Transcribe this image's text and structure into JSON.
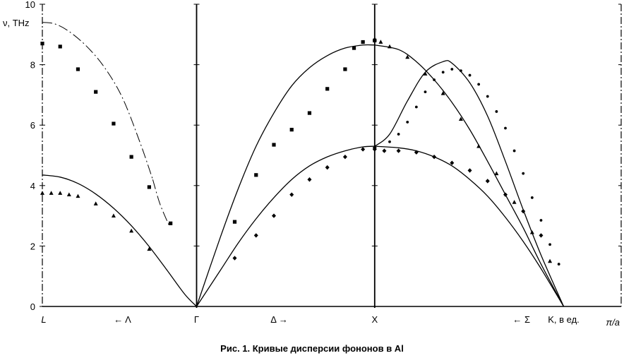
{
  "caption": "Рис. 1. Кривые дисперсии фононов в Al",
  "chart_data": {
    "type": "line",
    "title": "",
    "ylabel": "ν, THz",
    "xlabel": "K, в ед. π/a",
    "ylim": [
      0,
      10
    ],
    "yticks": [
      0,
      2,
      4,
      6,
      8,
      10
    ],
    "grid": false,
    "x_points": [
      {
        "label": "L",
        "x": 0
      },
      {
        "label": "Γ",
        "x": 0.866
      },
      {
        "label": "X",
        "x": 1.866
      },
      {
        "label": "K, в ед.",
        "x": 2.927
      }
    ],
    "direction_labels": [
      {
        "label": "← Λ",
        "x": 0.45
      },
      {
        "label": "Δ →",
        "x": 1.33
      },
      {
        "label": "← Σ",
        "x": 2.69
      }
    ],
    "xlim": [
      0,
      3.25
    ],
    "series": [
      {
        "style": "solid",
        "x": [
          0,
          0.1,
          0.2,
          0.3,
          0.4,
          0.5,
          0.6,
          0.7,
          0.8,
          0.866
        ],
        "values": [
          4.35,
          4.28,
          4.07,
          3.72,
          3.25,
          2.67,
          1.98,
          1.2,
          0.4,
          0
        ]
      },
      {
        "style": "dash-dot",
        "x": [
          0,
          0.07,
          0.15,
          0.25,
          0.35,
          0.45,
          0.55,
          0.62
        ],
        "values": [
          9.4,
          9.35,
          9.1,
          8.6,
          7.9,
          6.9,
          5.4,
          4.2
        ]
      },
      {
        "style": "dash-dot",
        "x": [
          0.62,
          0.66,
          0.71
        ],
        "values": [
          4.2,
          3.4,
          2.7
        ]
      },
      {
        "style": "solid",
        "x": [
          0.866,
          1.0,
          1.1,
          1.2,
          1.3,
          1.4,
          1.5,
          1.6,
          1.7,
          1.8,
          1.866
        ],
        "values": [
          0,
          2.3,
          3.9,
          5.3,
          6.4,
          7.3,
          7.9,
          8.3,
          8.55,
          8.65,
          8.65
        ]
      },
      {
        "style": "solid",
        "x": [
          0.866,
          1.0,
          1.1,
          1.2,
          1.3,
          1.4,
          1.5,
          1.6,
          1.7,
          1.8,
          1.866
        ],
        "values": [
          0,
          1.2,
          2.1,
          2.9,
          3.6,
          4.2,
          4.65,
          4.95,
          5.15,
          5.28,
          5.3
        ]
      },
      {
        "style": "solid",
        "x": [
          1.866,
          2.0,
          2.1,
          2.2,
          2.3,
          2.4,
          2.5,
          2.6,
          2.7,
          2.8,
          2.927
        ],
        "values": [
          5.3,
          5.25,
          5.15,
          4.95,
          4.65,
          4.2,
          3.65,
          2.95,
          2.15,
          1.25,
          0
        ]
      },
      {
        "style": "solid",
        "x": [
          1.866,
          2.0,
          2.1,
          2.2,
          2.3,
          2.4,
          2.5,
          2.6,
          2.7,
          2.8,
          2.927
        ],
        "values": [
          8.65,
          8.5,
          8.1,
          7.5,
          6.75,
          5.85,
          4.8,
          3.7,
          2.6,
          1.4,
          0
        ]
      },
      {
        "style": "solid",
        "x": [
          1.866,
          1.95,
          2.05,
          2.15,
          2.25,
          2.3,
          2.4,
          2.5,
          2.6,
          2.7,
          2.8,
          2.927
        ],
        "values": [
          5.3,
          5.7,
          6.8,
          7.75,
          8.1,
          8.05,
          7.4,
          6.3,
          4.8,
          3.2,
          1.7,
          0
        ]
      },
      {
        "style": "markers",
        "marker": "square",
        "x": [
          0,
          0.1,
          0.2,
          0.3,
          0.4,
          0.5,
          0.6,
          0.72
        ],
        "values": [
          8.7,
          8.6,
          7.85,
          7.1,
          6.05,
          4.95,
          3.95,
          2.75
        ]
      },
      {
        "style": "markers",
        "marker": "triangle",
        "x": [
          0,
          0.05,
          0.1,
          0.15,
          0.2,
          0.3,
          0.4,
          0.5,
          0.6
        ],
        "values": [
          3.75,
          3.75,
          3.75,
          3.7,
          3.65,
          3.4,
          3.0,
          2.5,
          1.9
        ]
      },
      {
        "style": "markers",
        "marker": "square",
        "x": [
          1.08,
          1.2,
          1.3,
          1.4,
          1.5,
          1.6,
          1.7,
          1.75,
          1.8,
          1.866
        ],
        "values": [
          2.8,
          4.35,
          5.35,
          5.85,
          6.4,
          7.2,
          7.85,
          8.55,
          8.75,
          8.8
        ]
      },
      {
        "style": "markers",
        "marker": "diamond",
        "x": [
          1.08,
          1.2,
          1.3,
          1.4,
          1.5,
          1.6,
          1.7,
          1.8,
          1.866
        ],
        "values": [
          1.6,
          2.35,
          3.0,
          3.7,
          4.2,
          4.6,
          4.95,
          5.2,
          5.25
        ]
      },
      {
        "style": "markers",
        "marker": "triangle",
        "x": [
          1.866,
          1.9,
          1.95,
          2.05,
          2.15,
          2.25,
          2.35,
          2.45,
          2.55,
          2.65,
          2.75,
          2.85
        ],
        "values": [
          8.85,
          8.75,
          8.6,
          8.25,
          7.7,
          7.05,
          6.2,
          5.3,
          4.4,
          3.45,
          2.45,
          1.5
        ]
      },
      {
        "style": "markers",
        "marker": "diamond",
        "x": [
          1.866,
          1.92,
          2.0,
          2.1,
          2.2,
          2.3,
          2.4,
          2.5,
          2.6,
          2.7,
          2.8
        ],
        "values": [
          5.2,
          5.15,
          5.15,
          5.1,
          4.95,
          4.75,
          4.5,
          4.15,
          3.7,
          3.15,
          2.35
        ]
      },
      {
        "style": "markers",
        "marker": "dot",
        "x": [
          1.95,
          2.0,
          2.05,
          2.1,
          2.15,
          2.2,
          2.25,
          2.3,
          2.35,
          2.4,
          2.45,
          2.5,
          2.55,
          2.6,
          2.65,
          2.7,
          2.75,
          2.8,
          2.85,
          2.9
        ],
        "values": [
          5.45,
          5.7,
          6.1,
          6.6,
          7.1,
          7.5,
          7.75,
          7.85,
          7.8,
          7.65,
          7.35,
          6.95,
          6.45,
          5.9,
          5.15,
          4.4,
          3.6,
          2.85,
          2.05,
          1.4
        ]
      }
    ]
  }
}
